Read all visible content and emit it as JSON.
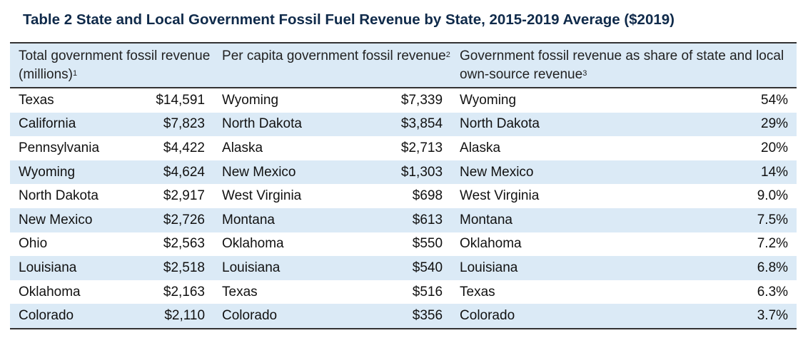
{
  "title": "Table 2 State and Local Government Fossil Fuel Revenue by State, 2015-2019 Average ($2019)",
  "headers": {
    "col1": "Total government fossil revenue (millions)",
    "col1_note": "1",
    "col2": "Per capita government fossil revenue",
    "col2_note": "2",
    "col3": "Government fossil revenue as share of state and local own-source revenue",
    "col3_note": "3"
  },
  "rows": [
    {
      "s1": "Texas",
      "v1": "$14,591",
      "s2": "Wyoming",
      "v2": "$7,339",
      "s3": "Wyoming",
      "v3": "54%"
    },
    {
      "s1": "California",
      "v1": "$7,823",
      "s2": "North Dakota",
      "v2": "$3,854",
      "s3": "North Dakota",
      "v3": "29%"
    },
    {
      "s1": "Pennsylvania",
      "v1": "$4,422",
      "s2": "Alaska",
      "v2": "$2,713",
      "s3": "Alaska",
      "v3": "20%"
    },
    {
      "s1": "Wyoming",
      "v1": "$4,624",
      "s2": "New Mexico",
      "v2": "$1,303",
      "s3": "New Mexico",
      "v3": "14%"
    },
    {
      "s1": "North Dakota",
      "v1": "$2,917",
      "s2": "West Virginia",
      "v2": "$698",
      "s3": "West Virginia",
      "v3": "9.0%"
    },
    {
      "s1": "New Mexico",
      "v1": "$2,726",
      "s2": "Montana",
      "v2": "$613",
      "s3": "Montana",
      "v3": "7.5%"
    },
    {
      "s1": "Ohio",
      "v1": "$2,563",
      "s2": "Oklahoma",
      "v2": "$550",
      "s3": "Oklahoma",
      "v3": "7.2%"
    },
    {
      "s1": "Louisiana",
      "v1": "$2,518",
      "s2": "Louisiana",
      "v2": "$540",
      "s3": "Louisiana",
      "v3": "6.8%"
    },
    {
      "s1": "Oklahoma",
      "v1": "$2,163",
      "s2": "Texas",
      "v2": "$516",
      "s3": "Texas",
      "v3": "6.3%"
    },
    {
      "s1": "Colorado",
      "v1": "$2,110",
      "s2": "Colorado",
      "v2": "$356",
      "s3": "Colorado",
      "v3": "3.7%"
    }
  ],
  "colors": {
    "title": "#0f2a4a",
    "shade": "#dbeaf6",
    "rule": "#333333"
  }
}
